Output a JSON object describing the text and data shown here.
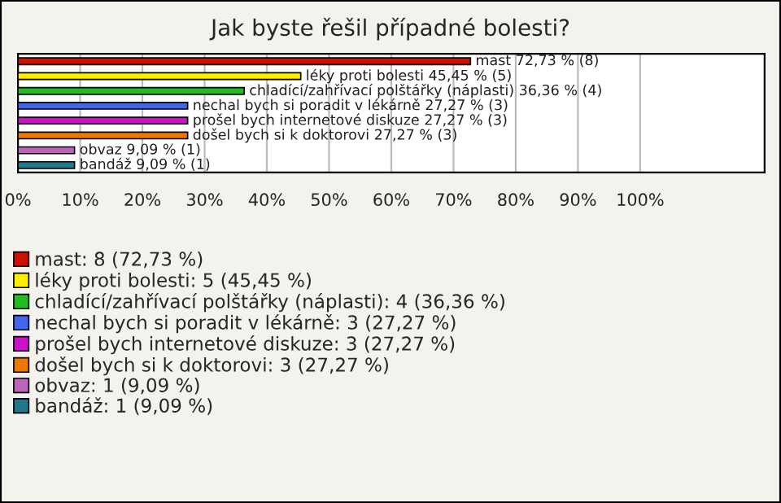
{
  "chart_data": {
    "type": "bar",
    "orientation": "horizontal",
    "title": "Jak byste řešil případné bolesti?",
    "categories": [
      null,
      null,
      null,
      null,
      null,
      null,
      null,
      null
    ],
    "series": [
      {
        "name": "mast: 8 (72,73 %)",
        "color": "#cc1100",
        "values": [
          72.73,
          null,
          null,
          null,
          null,
          null,
          null,
          null
        ],
        "value_labels": [
          "mast 72,73 % (8)",
          null,
          null,
          null,
          null,
          null,
          null,
          null
        ]
      },
      {
        "name": "léky proti bolesti: 5 (45,45 %)",
        "color": "#ffee00",
        "values": [
          null,
          45.45,
          null,
          null,
          null,
          null,
          null,
          null
        ],
        "value_labels": [
          null,
          "léky proti bolesti 45,45 % (5)",
          null,
          null,
          null,
          null,
          null,
          null
        ]
      },
      {
        "name": "chladící/zahřívací polštářky (náplasti): 4 (36,36 %)",
        "color": "#22bb22",
        "values": [
          null,
          null,
          36.36,
          null,
          null,
          null,
          null,
          null
        ],
        "value_labels": [
          null,
          null,
          "chladící/zahřívací polštářky (náplasti) 36,36 % (4)",
          null,
          null,
          null,
          null,
          null
        ]
      },
      {
        "name": "nechal bych si poradit v lékárně: 3 (27,27 %)",
        "color": "#4466ee",
        "values": [
          null,
          null,
          null,
          27.27,
          null,
          null,
          null,
          null
        ],
        "value_labels": [
          null,
          null,
          null,
          "nechal bych si poradit v lékárně 27,27 % (3)",
          null,
          null,
          null,
          null
        ]
      },
      {
        "name": "prošel bych internetové diskuze: 3 (27,27 %)",
        "color": "#cc11cc",
        "values": [
          null,
          null,
          null,
          null,
          27.27,
          null,
          null,
          null
        ],
        "value_labels": [
          null,
          null,
          null,
          null,
          "prošel bych internetové diskuze 27,27 % (3)",
          null,
          null,
          null
        ]
      },
      {
        "name": "došel bych si k doktorovi: 3 (27,27 %)",
        "color": "#ee7700",
        "values": [
          null,
          null,
          null,
          null,
          null,
          27.27,
          null,
          null
        ],
        "value_labels": [
          null,
          null,
          null,
          null,
          null,
          "došel bych si k doktorovi 27,27 % (3)",
          null,
          null
        ]
      },
      {
        "name": "obvaz: 1 (9,09 %)",
        "color": "#bb66bb",
        "values": [
          null,
          null,
          null,
          null,
          null,
          null,
          9.09,
          null
        ],
        "value_labels": [
          null,
          null,
          null,
          null,
          null,
          null,
          "obvaz 9,09 % (1)",
          null
        ]
      },
      {
        "name": "bandáž: 1 (9,09 %)",
        "color": "#227788",
        "values": [
          null,
          null,
          null,
          null,
          null,
          null,
          null,
          9.09
        ],
        "value_labels": [
          null,
          null,
          null,
          null,
          null,
          null,
          null,
          "bandáž 9,09 % (1)"
        ]
      }
    ],
    "xlim": [
      0,
      120
    ],
    "xticks": [
      {
        "value": 0,
        "label": "0%"
      },
      {
        "value": 10,
        "label": "10%"
      },
      {
        "value": 20,
        "label": "20%"
      },
      {
        "value": 30,
        "label": "30%"
      },
      {
        "value": 40,
        "label": "40%"
      },
      {
        "value": 50,
        "label": "50%"
      },
      {
        "value": 60,
        "label": "60%"
      },
      {
        "value": 70,
        "label": "70%"
      },
      {
        "value": 80,
        "label": "80%"
      },
      {
        "value": 90,
        "label": "90%"
      },
      {
        "value": 100,
        "label": "100%"
      }
    ],
    "grid": "x",
    "legend": "bottom"
  }
}
